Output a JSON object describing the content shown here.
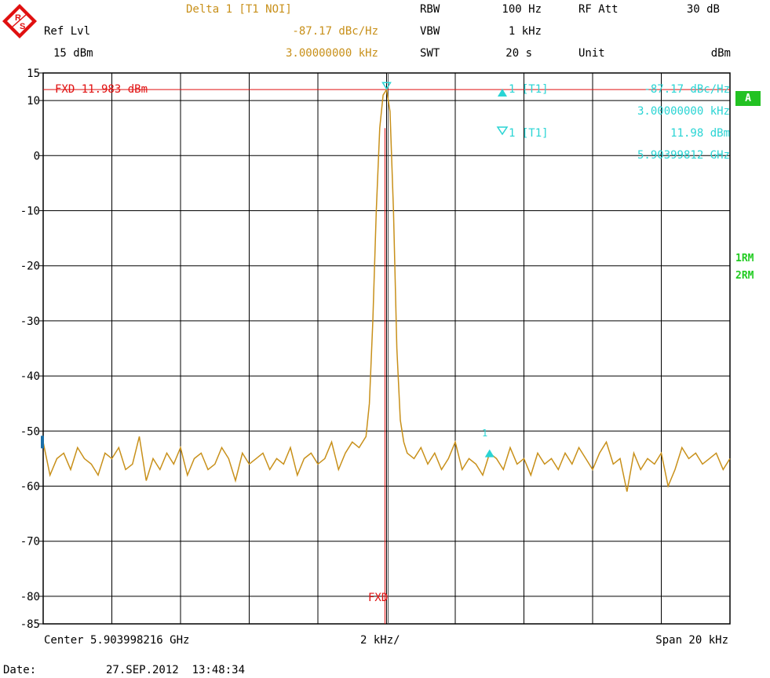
{
  "header": {
    "ref_lvl_label": "Ref Lvl",
    "ref_lvl_value": "15 dBm",
    "delta_title": "Delta 1 [T1 NOI]",
    "delta_value": "-87.17 dBc/Hz",
    "delta_freq": "3.00000000 kHz",
    "rbw_label": "RBW",
    "rbw_value": "100 Hz",
    "vbw_label": "VBW",
    "vbw_value": "1 kHz",
    "swt_label": "SWT",
    "swt_value": "20 s",
    "rfatt_label": "RF Att",
    "rfatt_value": "30 dB",
    "unit_label": "Unit",
    "unit_value": "dBm"
  },
  "markers": {
    "m1_label": "1 [T1]",
    "m1_value": "-87.17 dBc/Hz",
    "m1_freq": "3.00000000 kHz",
    "m2_label": "1 [T1]",
    "m2_value": "11.98 dBm",
    "m2_freq": "5.90399812 GHz",
    "plot_marker_label": "1"
  },
  "side": {
    "badge": "A",
    "trace1": "1RM",
    "trace2": "2RM"
  },
  "fxd": {
    "line_label": "FXD 11.983 dBm",
    "bottom_label": "FXD"
  },
  "footer": {
    "center": "Center 5.903998216 GHz",
    "div": "2 kHz/",
    "span": "Span 20 kHz",
    "date_label": "Date:",
    "date_value": "27.SEP.2012  13:48:34"
  },
  "colors": {
    "trace": "#c8901a",
    "marker": "#2ad4d4",
    "fxd": "#e01010",
    "badge": "#22c222"
  },
  "icons": {
    "logo": "rohde-schwarz-logo-icon"
  },
  "chart_data": {
    "type": "line",
    "xlabel": "",
    "ylabel": "",
    "x_unit": "kHz offset from center",
    "xlim": [
      -10,
      10
    ],
    "ylim": [
      -85,
      15
    ],
    "yticks": [
      15,
      10,
      0,
      -10,
      -20,
      -30,
      -40,
      -50,
      -60,
      -70,
      -80,
      -85
    ],
    "grid": true,
    "fxd_level": 11.983,
    "peak": {
      "x": 0.0,
      "y": 11.98
    },
    "marker_delta": {
      "x": 3.0,
      "y": -53.9
    },
    "series": [
      {
        "x": [
          -10.0,
          -9.8,
          -9.6,
          -9.4,
          -9.2,
          -9.0,
          -8.8,
          -8.6,
          -8.4,
          -8.2,
          -8.0,
          -7.8,
          -7.6,
          -7.4,
          -7.2,
          -7.0,
          -6.8,
          -6.6,
          -6.4,
          -6.2,
          -6.0,
          -5.8,
          -5.6,
          -5.4,
          -5.2,
          -5.0,
          -4.8,
          -4.6,
          -4.4,
          -4.2,
          -4.0,
          -3.8,
          -3.6,
          -3.4,
          -3.2,
          -3.0,
          -2.8,
          -2.6,
          -2.4,
          -2.2,
          -2.0,
          -1.8,
          -1.6,
          -1.4,
          -1.2,
          -1.0,
          -0.8,
          -0.6,
          -0.5,
          -0.4,
          -0.3,
          -0.2,
          -0.1,
          0.0,
          0.1,
          0.2,
          0.3,
          0.4,
          0.5,
          0.6,
          0.8,
          1.0,
          1.2,
          1.4,
          1.6,
          1.8,
          2.0,
          2.2,
          2.4,
          2.6,
          2.8,
          3.0,
          3.2,
          3.4,
          3.6,
          3.8,
          4.0,
          4.2,
          4.4,
          4.6,
          4.8,
          5.0,
          5.2,
          5.4,
          5.6,
          5.8,
          6.0,
          6.2,
          6.4,
          6.6,
          6.8,
          7.0,
          7.2,
          7.4,
          7.6,
          7.8,
          8.0,
          8.2,
          8.4,
          8.6,
          8.8,
          9.0,
          9.2,
          9.4,
          9.6,
          9.8,
          10.0
        ],
        "y": [
          -52,
          -58,
          -55,
          -54,
          -57,
          -53,
          -55,
          -56,
          -58,
          -54,
          -55,
          -53,
          -57,
          -56,
          -51,
          -59,
          -55,
          -57,
          -54,
          -56,
          -53,
          -58,
          -55,
          -54,
          -57,
          -56,
          -53,
          -55,
          -59,
          -54,
          -56,
          -55,
          -54,
          -57,
          -55,
          -56,
          -53,
          -58,
          -55,
          -54,
          -56,
          -55,
          -52,
          -57,
          -54,
          -52,
          -53,
          -51,
          -45,
          -30,
          -10,
          5,
          11,
          11.98,
          8,
          -10,
          -35,
          -48,
          -52,
          -54,
          -55,
          -53,
          -56,
          -54,
          -57,
          -55,
          -52,
          -57,
          -55,
          -56,
          -58,
          -54,
          -55,
          -57,
          -53,
          -56,
          -55,
          -58,
          -54,
          -56,
          -55,
          -57,
          -54,
          -56,
          -53,
          -55,
          -57,
          -54,
          -52,
          -56,
          -55,
          -61,
          -54,
          -57,
          -55,
          -56,
          -54,
          -60,
          -57,
          -53,
          -55,
          -54,
          -56,
          -55,
          -54,
          -57,
          -55
        ]
      }
    ]
  }
}
